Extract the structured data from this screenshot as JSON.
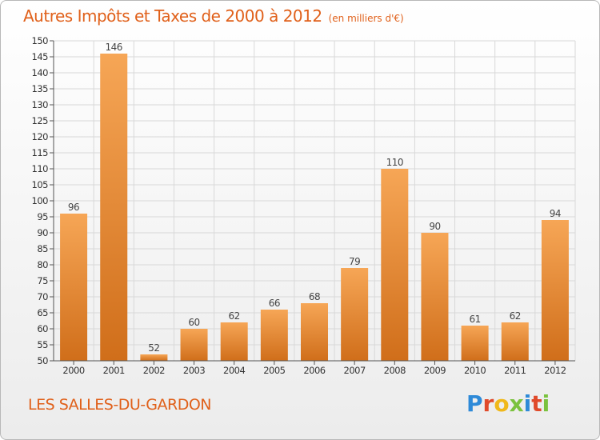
{
  "title": "Autres Impôts et Taxes de 2000 à 2012",
  "subtitle": "(en milliers d'€)",
  "location": "LES SALLES-DU-GARDON",
  "logo": {
    "text": "Proxiti",
    "letters": [
      {
        "ch": "P",
        "color": "#2e8ad8"
      },
      {
        "ch": "r",
        "color": "#e04a2a"
      },
      {
        "ch": "o",
        "color": "#f0b81a"
      },
      {
        "ch": "x",
        "color": "#7bc23e"
      },
      {
        "ch": "i",
        "color": "#2e8ad8"
      },
      {
        "ch": "t",
        "color": "#e04a2a"
      },
      {
        "ch": "i",
        "color": "#7bc23e"
      }
    ]
  },
  "colors": {
    "accent": "#e0601a",
    "bar_top": "#f6a656",
    "bar_bottom": "#d06e1a",
    "grid": "#d8d8d8"
  },
  "chart_data": {
    "type": "bar",
    "categories": [
      "2000",
      "2001",
      "2002",
      "2003",
      "2004",
      "2005",
      "2006",
      "2007",
      "2008",
      "2009",
      "2010",
      "2011",
      "2012"
    ],
    "values": [
      96,
      146,
      52,
      60,
      62,
      66,
      68,
      79,
      110,
      90,
      61,
      62,
      94
    ],
    "ylim": [
      50,
      150
    ],
    "yticks": [
      50,
      55,
      60,
      65,
      70,
      75,
      80,
      85,
      90,
      95,
      100,
      105,
      110,
      115,
      120,
      125,
      130,
      135,
      140,
      145,
      150
    ],
    "grid": true,
    "data_labels": true
  }
}
